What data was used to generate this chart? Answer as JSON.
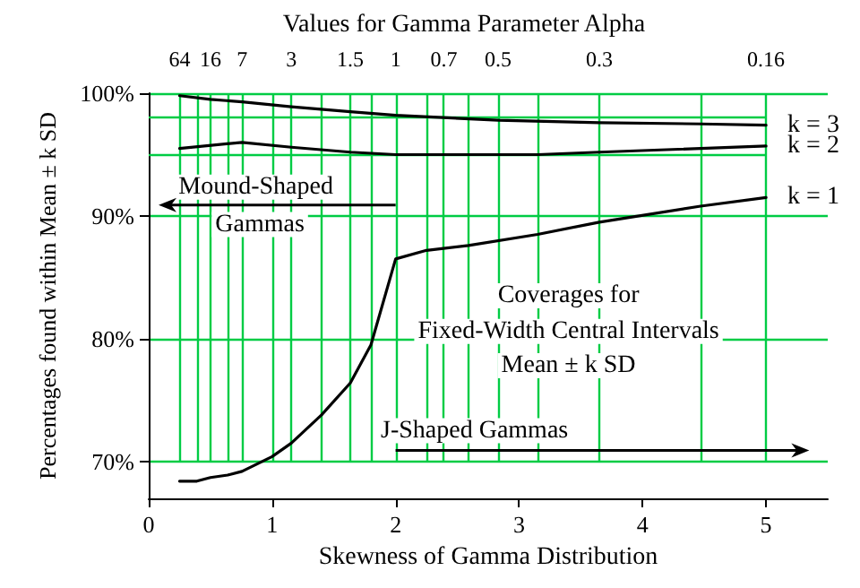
{
  "chart_data": {
    "type": "line",
    "title": "Values for Gamma Parameter Alpha",
    "xlabel": "Skewness of Gamma Distribution",
    "ylabel": "Percentages found within Mean ± k SD",
    "xlim": [
      0,
      5.5
    ],
    "xticks": [
      0,
      1,
      2,
      3,
      4,
      5
    ],
    "ylim": [
      67,
      100
    ],
    "yticks": [
      {
        "value": 70,
        "label": "70%"
      },
      {
        "value": 80,
        "label": "80%"
      },
      {
        "value": 90,
        "label": "90%"
      },
      {
        "value": 100,
        "label": "100%"
      }
    ],
    "grid": "y",
    "legend": false,
    "marker": "none",
    "line_style": "solid",
    "series": [
      {
        "name": "k = 3",
        "color": "#000000",
        "x": [
          0.25,
          0.5,
          0.756,
          1.155,
          1.633,
          2,
          2.83,
          3.65,
          4.47,
          5
        ],
        "values": [
          99.8,
          99.5,
          99.3,
          98.9,
          98.5,
          98.2,
          97.8,
          97.6,
          97.5,
          97.4
        ]
      },
      {
        "name": "k = 2",
        "color": "#000000",
        "x": [
          0.25,
          0.756,
          1.155,
          1.633,
          2,
          3.15,
          3.65,
          5
        ],
        "values": [
          95.5,
          96.0,
          95.6,
          95.2,
          95.0,
          95.0,
          95.2,
          95.7
        ]
      },
      {
        "name": "k = 1",
        "color": "#000000",
        "x": [
          0.25,
          0.39,
          0.5,
          0.64,
          0.756,
          1.0,
          1.155,
          1.4,
          1.633,
          1.8,
          2,
          2.25,
          2.59,
          3.15,
          3.65,
          4.47,
          5
        ],
        "values": [
          68.4,
          68.4,
          68.7,
          68.9,
          69.2,
          70.4,
          71.5,
          73.8,
          76.4,
          79.5,
          86.5,
          87.2,
          87.6,
          88.5,
          89.5,
          90.8,
          91.5
        ]
      }
    ],
    "ref_lines": [
      {
        "axis": "y",
        "value": 98,
        "color": "#00cc44"
      },
      {
        "axis": "y",
        "value": 95,
        "color": "#00cc44"
      },
      {
        "axis": "x",
        "value": 0.25,
        "color": "#00cc44"
      },
      {
        "axis": "x",
        "value": 0.39,
        "color": "#00cc44"
      },
      {
        "axis": "x",
        "value": 0.5,
        "color": "#00cc44"
      },
      {
        "axis": "x",
        "value": 0.64,
        "color": "#00cc44"
      },
      {
        "axis": "x",
        "value": 0.756,
        "color": "#00cc44"
      },
      {
        "axis": "x",
        "value": 1.0,
        "color": "#00cc44"
      },
      {
        "axis": "x",
        "value": 1.155,
        "color": "#00cc44"
      },
      {
        "axis": "x",
        "value": 1.4,
        "color": "#00cc44"
      },
      {
        "axis": "x",
        "value": 1.633,
        "color": "#00cc44"
      },
      {
        "axis": "x",
        "value": 1.8,
        "color": "#00cc44"
      },
      {
        "axis": "x",
        "value": 2,
        "color": "#00cc44"
      },
      {
        "axis": "x",
        "value": 2.25,
        "color": "#00cc44"
      },
      {
        "axis": "x",
        "value": 2.39,
        "color": "#00cc44"
      },
      {
        "axis": "x",
        "value": 2.59,
        "color": "#00cc44"
      },
      {
        "axis": "x",
        "value": 2.83,
        "color": "#00cc44"
      },
      {
        "axis": "x",
        "value": 3.15,
        "color": "#00cc44"
      },
      {
        "axis": "x",
        "value": 3.65,
        "color": "#00cc44"
      },
      {
        "axis": "x",
        "value": 4.47,
        "color": "#00cc44"
      },
      {
        "axis": "x",
        "value": 5,
        "color": "#00cc44"
      }
    ],
    "annotations": [
      {
        "text": "Mound-Shaped",
        "x": 2,
        "y": 90.9
      },
      "Gammas",
      "Coverages for",
      "Fixed-Width Central Intervals",
      "Mean ± k SD",
      {
        "text": "J-Shaped Gammas",
        "x": 2,
        "y": 70.9
      },
      {
        "text": "64",
        "x": 0.25,
        "y": 100
      },
      {
        "text": "16",
        "x": 0.5,
        "y": 100
      },
      {
        "text": "7",
        "x": 0.756,
        "y": 100
      },
      {
        "text": "3",
        "x": 1.155,
        "y": 100
      },
      {
        "text": "1.5",
        "x": 1.633,
        "y": 100
      },
      {
        "text": "1",
        "x": 2,
        "y": 100
      },
      {
        "text": "0.7",
        "x": 2.39,
        "y": 100
      },
      {
        "text": "0.5",
        "x": 2.83,
        "y": 100
      },
      {
        "text": "0.3",
        "x": 3.65,
        "y": 100
      },
      {
        "text": "0.16",
        "x": 5,
        "y": 100
      }
    ]
  }
}
